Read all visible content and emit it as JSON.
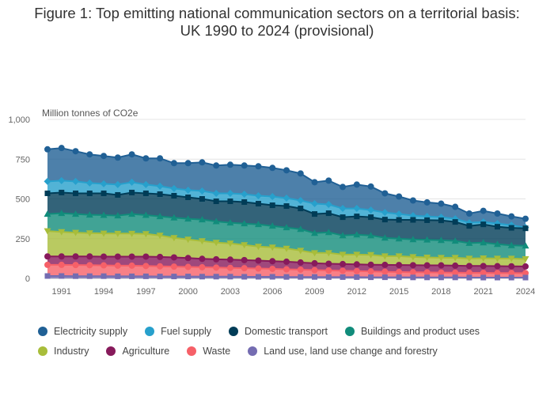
{
  "title": "Figure 1: Top emitting national communication sectors on a territorial basis: UK 1990 to 2024 (provisional)",
  "chart_data": {
    "type": "area",
    "title": "Figure 1: Top emitting national communication sectors on a territorial basis: UK 1990 to 2024 (provisional)",
    "ylabel": "Million tonnes of CO2e",
    "xlabel": "",
    "stacked": true,
    "ylim": [
      0,
      1000
    ],
    "yticks": [
      0,
      250,
      500,
      750,
      1000
    ],
    "ytick_labels": [
      "0",
      "250",
      "500",
      "750",
      "1,000"
    ],
    "xticks": [
      1991,
      1994,
      1997,
      2000,
      2003,
      2006,
      2009,
      2012,
      2015,
      2018,
      2021,
      2024
    ],
    "grid": true,
    "legend_position": "bottom",
    "x": [
      1990,
      1991,
      1992,
      1993,
      1994,
      1995,
      1996,
      1997,
      1998,
      1999,
      2000,
      2001,
      2002,
      2003,
      2004,
      2005,
      2006,
      2007,
      2008,
      2009,
      2010,
      2011,
      2012,
      2013,
      2014,
      2015,
      2016,
      2017,
      2018,
      2019,
      2020,
      2021,
      2022,
      2023,
      2024
    ],
    "series": [
      {
        "name": "Electricity supply",
        "color": "#206095",
        "marker": "circle",
        "cumulative": [
          812,
          820,
          800,
          780,
          770,
          760,
          780,
          755,
          755,
          725,
          725,
          730,
          710,
          715,
          710,
          705,
          695,
          680,
          660,
          605,
          615,
          575,
          590,
          578,
          535,
          515,
          490,
          478,
          470,
          450,
          408,
          425,
          408,
          390,
          375
        ]
      },
      {
        "name": "Fuel supply",
        "color": "#27a0cc",
        "marker": "diamond",
        "cumulative": [
          610,
          615,
          610,
          600,
          595,
          590,
          605,
          590,
          580,
          565,
          555,
          550,
          535,
          535,
          530,
          520,
          515,
          505,
          490,
          470,
          465,
          440,
          440,
          430,
          415,
          405,
          395,
          390,
          385,
          375,
          350,
          355,
          345,
          335,
          320
        ]
      },
      {
        "name": "Domestic transport",
        "color": "#003c57",
        "marker": "square",
        "cumulative": [
          535,
          540,
          535,
          535,
          535,
          525,
          540,
          535,
          530,
          520,
          510,
          500,
          485,
          485,
          480,
          470,
          460,
          455,
          440,
          405,
          410,
          385,
          390,
          385,
          370,
          368,
          368,
          366,
          365,
          355,
          330,
          340,
          325,
          318,
          315
        ]
      },
      {
        "name": "Buildings and product uses",
        "color": "#118c7b",
        "marker": "triangle-up",
        "cumulative": [
          405,
          410,
          405,
          400,
          398,
          395,
          405,
          398,
          390,
          382,
          375,
          370,
          358,
          350,
          345,
          340,
          330,
          320,
          310,
          285,
          290,
          270,
          275,
          270,
          255,
          250,
          245,
          243,
          240,
          236,
          222,
          225,
          215,
          208,
          205
        ]
      },
      {
        "name": "Industry",
        "color": "#a8bd3a",
        "marker": "triangle-down",
        "cumulative": [
          298,
          292,
          288,
          285,
          283,
          282,
          282,
          280,
          270,
          255,
          245,
          235,
          225,
          220,
          210,
          200,
          195,
          188,
          175,
          160,
          160,
          150,
          150,
          148,
          140,
          140,
          135,
          132,
          130,
          130,
          125,
          127,
          125,
          125,
          122
        ]
      },
      {
        "name": "Agriculture",
        "color": "#871a5b",
        "marker": "circle",
        "cumulative": [
          138,
          138,
          138,
          138,
          137,
          137,
          137,
          137,
          135,
          132,
          128,
          123,
          120,
          118,
          115,
          112,
          108,
          105,
          100,
          95,
          92,
          90,
          88,
          86,
          85,
          84,
          83,
          82,
          82,
          80,
          78,
          78,
          77,
          76,
          75
        ]
      },
      {
        "name": "Waste",
        "color": "#f66068",
        "marker": "circle",
        "cumulative": [
          85,
          85,
          84,
          83,
          82,
          80,
          80,
          78,
          76,
          74,
          72,
          70,
          68,
          66,
          64,
          62,
          60,
          57,
          55,
          52,
          50,
          48,
          46,
          44,
          42,
          40,
          39,
          38,
          37,
          36,
          35,
          35,
          34,
          34,
          33
        ]
      },
      {
        "name": "Land use, land use change and forestry",
        "color": "#746cb1",
        "marker": "square",
        "cumulative": [
          15,
          15,
          14,
          14,
          14,
          13,
          13,
          13,
          12,
          12,
          12,
          11,
          11,
          11,
          10,
          10,
          10,
          9,
          9,
          9,
          8,
          8,
          8,
          7,
          7,
          7,
          6,
          6,
          6,
          6,
          5,
          5,
          5,
          5,
          5
        ]
      }
    ]
  },
  "legend": [
    {
      "label": "Electricity supply",
      "color": "#206095"
    },
    {
      "label": "Fuel supply",
      "color": "#27a0cc"
    },
    {
      "label": "Domestic transport",
      "color": "#003c57"
    },
    {
      "label": "Buildings and product uses",
      "color": "#118c7b"
    },
    {
      "label": "Industry",
      "color": "#a8bd3a"
    },
    {
      "label": "Agriculture",
      "color": "#871a5b"
    },
    {
      "label": "Waste",
      "color": "#f66068"
    },
    {
      "label": "Land use, land use change and forestry",
      "color": "#746cb1"
    }
  ]
}
